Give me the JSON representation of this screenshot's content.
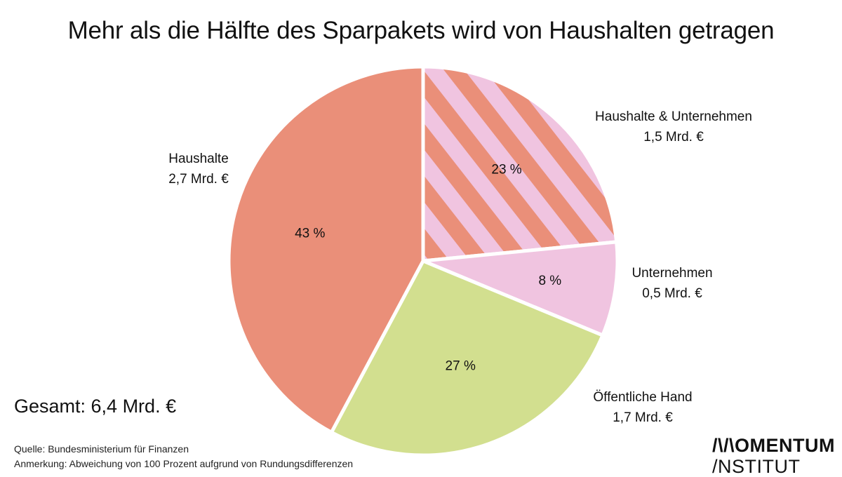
{
  "chart_data": {
    "type": "pie",
    "title": "Mehr als die Hälfte des Sparpakets wird von Haushalten getragen",
    "slices": [
      {
        "label": "Haushalte & Unternehmen",
        "amount": "1,5 Mrd. €",
        "value": 1.5,
        "percent_label": "23 %",
        "color": "#ea8f79",
        "pattern": "stripes",
        "stripe_color": "#f0c4e0"
      },
      {
        "label": "Unternehmen",
        "amount": "0,5 Mrd. €",
        "value": 0.5,
        "percent_label": "8 %",
        "color": "#f0c4e0"
      },
      {
        "label": "Öffentliche Hand",
        "amount": "1,7 Mrd. €",
        "value": 1.7,
        "percent_label": "27 %",
        "color": "#d2df8f"
      },
      {
        "label": "Haushalte",
        "amount": "2,7 Mrd. €",
        "value": 2.7,
        "percent_label": "43 %",
        "color": "#ea8f79"
      }
    ],
    "total": "Gesamt: 6,4 Mrd. €",
    "start": "12 o'clock, clockwise"
  },
  "footer": {
    "source": "Quelle: Bundesministerium für Finanzen",
    "note": "Anmerkung: Abweichung von 100 Prozent aufgrund von Rundungsdifferenzen"
  },
  "logo": {
    "line1": "/\\/\\OMENTUM",
    "line2": "/NSTITUT"
  }
}
